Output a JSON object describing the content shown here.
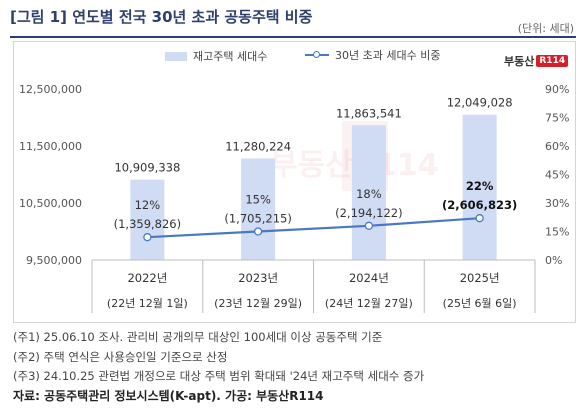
{
  "figure": {
    "title": "[그림 1] 연도별 전국 30년 초과 공동주택 비중",
    "unit": "(단위: 세대)"
  },
  "legend": {
    "bar_label": "재고주택 세대수",
    "line_label": "30년 초과 세대수 비중"
  },
  "logo": {
    "text": "부동산",
    "badge": "R114"
  },
  "colors": {
    "bar": "#cfdcf3",
    "line": "#4a78c2",
    "title": "#2e3f6e",
    "brand": "#d51f2b"
  },
  "chart_data": {
    "type": "bar",
    "categories": [
      "2022년",
      "2023년",
      "2024년",
      "2025년"
    ],
    "date_labels": [
      "(22년 12월 1일)",
      "(23년 12월 29일)",
      "(24년 12월 27일)",
      "(25년 6월 6일)"
    ],
    "series": [
      {
        "name": "재고주택 세대수",
        "type": "bar",
        "axis": "left",
        "values": [
          10909338,
          11280224,
          11863541,
          12049028
        ],
        "labels": [
          "10,909,338",
          "11,280,224",
          "11,863,541",
          "12,049,028"
        ]
      },
      {
        "name": "30년 초과 세대수 비중",
        "type": "line",
        "axis": "right",
        "values": [
          12,
          15,
          18,
          22
        ],
        "pct_labels": [
          "12%",
          "15%",
          "18%",
          "22%"
        ],
        "count_labels": [
          "(1,359,826)",
          "(1,705,215)",
          "(2,194,122)",
          "(2,606,823)"
        ]
      }
    ],
    "ylim_left": [
      9500000,
      12500000
    ],
    "yticks_left": [
      "12,500,000",
      "11,500,000",
      "10,500,000",
      "9,500,000"
    ],
    "ytick_values_left": [
      12500000,
      11500000,
      10500000,
      9500000
    ],
    "ylim_right": [
      0,
      90
    ],
    "yticks_right": [
      "90%",
      "75%",
      "60%",
      "45%",
      "30%",
      "15%",
      "0%"
    ],
    "ytick_values_right": [
      90,
      75,
      60,
      45,
      30,
      15,
      0
    ],
    "highlight_last": true
  },
  "notes": [
    "(주1) 25.06.10 조사. 관리비 공개의무 대상인 100세대 이상 공동주택 기준",
    "(주2) 주택 연식은 사용승인일 기준으로 산정",
    "(주3) 24.10.25 관련법 개정으로 대상 주택 범위 확대돼 '24년 재고주택 세대수 증가"
  ],
  "source": "자료: 공동주택관리 정보시스템(K-apt). 가공: 부동산R114"
}
